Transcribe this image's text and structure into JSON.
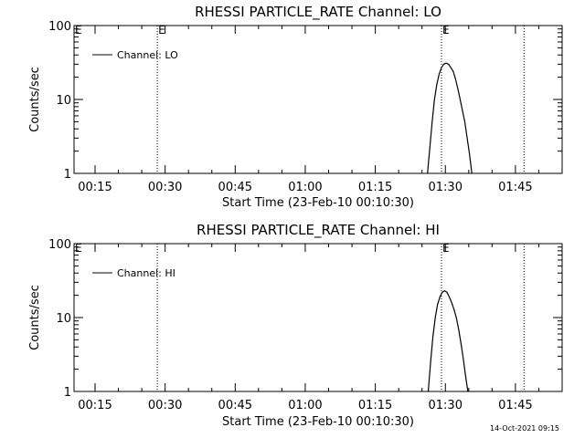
{
  "chart_data": [
    {
      "type": "line",
      "title": "RHESSI PARTICLE_RATE Channel: LO",
      "xlabel": "Start Time (23-Feb-10 00:10:30)",
      "ylabel": "Counts/sec",
      "yscale": "log",
      "ylim": [
        1,
        100
      ],
      "xlim": [
        "00:10:30",
        "01:55:00"
      ],
      "yticks": [
        1,
        10,
        100
      ],
      "ytick_labels": [
        "1",
        "10",
        "100"
      ],
      "xticks": [
        "00:15",
        "00:30",
        "00:45",
        "01:00",
        "01:15",
        "01:30",
        "01:45"
      ],
      "legend": {
        "position": "top-left",
        "entries": [
          "Channel: LO"
        ]
      },
      "event_lines": [
        {
          "time": "00:28:20",
          "label": "E"
        },
        {
          "time": "01:29:10",
          "label": "E"
        },
        {
          "time": "01:46:50",
          "label": ""
        }
      ],
      "series": [
        {
          "name": "Channel: LO",
          "x": [
            "01:26:10",
            "01:26:40",
            "01:27:10",
            "01:27:40",
            "01:28:10",
            "01:28:40",
            "01:29:10",
            "01:29:40",
            "01:30:10",
            "01:30:40",
            "01:31:10",
            "01:31:40",
            "01:32:10",
            "01:32:40",
            "01:33:10",
            "01:33:40",
            "01:34:10",
            "01:34:40",
            "01:35:10",
            "01:35:40"
          ],
          "y": [
            1,
            2.2,
            5,
            10,
            16,
            22,
            27,
            30,
            31,
            30,
            27,
            24,
            19,
            14,
            10,
            7,
            5,
            3,
            1.8,
            1
          ]
        }
      ]
    },
    {
      "type": "line",
      "title": "RHESSI PARTICLE_RATE Channel: HI",
      "xlabel": "Start Time (23-Feb-10 00:10:30)",
      "ylabel": "Counts/sec",
      "yscale": "log",
      "ylim": [
        1,
        100
      ],
      "xlim": [
        "00:10:30",
        "01:55:00"
      ],
      "yticks": [
        1,
        10,
        100
      ],
      "ytick_labels": [
        "1",
        "10",
        "100"
      ],
      "xticks": [
        "00:15",
        "00:30",
        "00:45",
        "01:00",
        "01:15",
        "01:30",
        "01:45"
      ],
      "legend": {
        "position": "top-left",
        "entries": [
          "Channel: HI"
        ]
      },
      "event_lines": [
        {
          "time": "00:28:20",
          "label": ""
        },
        {
          "time": "01:29:10",
          "label": "E"
        },
        {
          "time": "01:46:50",
          "label": ""
        }
      ],
      "series": [
        {
          "name": "Channel: HI",
          "x": [
            "01:26:20",
            "01:26:50",
            "01:27:20",
            "01:27:50",
            "01:28:20",
            "01:28:50",
            "01:29:20",
            "01:29:50",
            "01:30:20",
            "01:30:50",
            "01:31:20",
            "01:31:50",
            "01:32:20",
            "01:32:50",
            "01:33:20",
            "01:33:50",
            "01:34:20",
            "01:34:50"
          ],
          "y": [
            1,
            2.5,
            5.5,
            10,
            15,
            19,
            22,
            23,
            22,
            19,
            16,
            13,
            10,
            7,
            4.5,
            2.8,
            1.6,
            1
          ]
        }
      ]
    }
  ],
  "corner_marker": "E",
  "footer": {
    "timestamp": "14-Oct-2021 09:15"
  }
}
